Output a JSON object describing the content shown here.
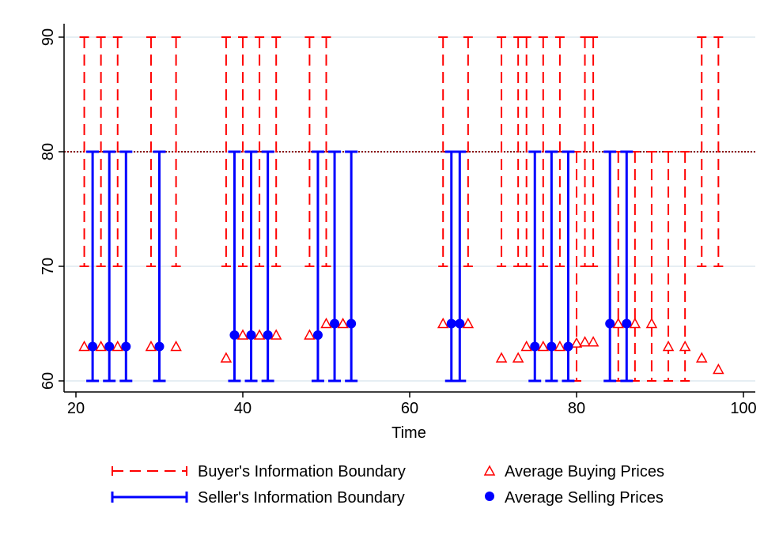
{
  "chart_data": {
    "type": "scatter",
    "xlabel": "Time",
    "ylabel": "",
    "xlim": [
      20,
      100
    ],
    "ylim": [
      60,
      90
    ],
    "x_ticks": [
      20,
      40,
      60,
      80,
      100
    ],
    "y_ticks": [
      60,
      70,
      80,
      90
    ],
    "grid": "horizontal",
    "reference_line": {
      "y": 80,
      "style": "dotted",
      "color": "#8b0000"
    },
    "legend_placement": "bottom",
    "colors": {
      "buyer": "#ff0000",
      "seller": "#0000ff",
      "axis": "#000000",
      "grid": "#e6eef3"
    },
    "series": [
      {
        "name": "Buyer's Information Boundary",
        "kind": "range",
        "style": "dashed",
        "color": "#ff0000",
        "x": [
          21,
          23,
          25,
          29,
          32,
          38,
          40,
          42,
          44,
          48,
          50,
          64,
          67,
          71,
          73,
          74,
          76,
          78,
          81,
          82,
          95,
          97,
          80,
          85,
          87,
          89,
          91,
          93
        ],
        "low": [
          70,
          70,
          70,
          70,
          70,
          70,
          70,
          70,
          70,
          70,
          70,
          70,
          70,
          70,
          70,
          70,
          70,
          70,
          70,
          70,
          70,
          70,
          60,
          60,
          60,
          60,
          60,
          60
        ],
        "high": [
          90,
          90,
          90,
          90,
          90,
          90,
          90,
          90,
          90,
          90,
          90,
          90,
          90,
          90,
          90,
          90,
          90,
          90,
          90,
          90,
          90,
          90,
          80,
          80,
          80,
          80,
          80,
          80
        ]
      },
      {
        "name": "Seller's Information Boundary",
        "kind": "range",
        "style": "solid",
        "color": "#0000ff",
        "x": [
          22,
          24,
          26,
          30,
          39,
          41,
          43,
          49,
          51,
          53,
          65,
          66,
          75,
          77,
          79,
          84,
          86
        ],
        "low": [
          60,
          60,
          60,
          60,
          60,
          60,
          60,
          60,
          60,
          60,
          60,
          60,
          60,
          60,
          60,
          60,
          60
        ],
        "high": [
          80,
          80,
          80,
          80,
          80,
          80,
          80,
          80,
          80,
          80,
          80,
          80,
          80,
          80,
          80,
          80,
          80
        ]
      },
      {
        "name": "Average Buying Prices",
        "kind": "points",
        "marker": "triangle-open",
        "color": "#ff0000",
        "x": [
          21,
          23,
          25,
          29,
          32,
          38,
          40,
          42,
          44,
          48,
          50,
          52,
          64,
          67,
          71,
          73,
          74,
          76,
          78,
          80,
          81,
          82,
          85,
          87,
          89,
          91,
          93,
          95,
          97
        ],
        "y": [
          63,
          63,
          63,
          63,
          63,
          62,
          64,
          64,
          64,
          64,
          65,
          65,
          65,
          65,
          62,
          62,
          63,
          63,
          63,
          63.3,
          63.4,
          63.4,
          65,
          65,
          65,
          63,
          63,
          62,
          61
        ]
      },
      {
        "name": "Average Selling Prices",
        "kind": "points",
        "marker": "circle-filled",
        "color": "#0000ff",
        "x": [
          22,
          24,
          26,
          30,
          39,
          41,
          43,
          49,
          51,
          53,
          65,
          66,
          75,
          77,
          79,
          84,
          86
        ],
        "y": [
          63,
          63,
          63,
          63,
          64,
          64,
          64,
          64,
          65,
          65,
          65,
          65,
          63,
          63,
          63,
          65,
          65
        ]
      }
    ]
  }
}
